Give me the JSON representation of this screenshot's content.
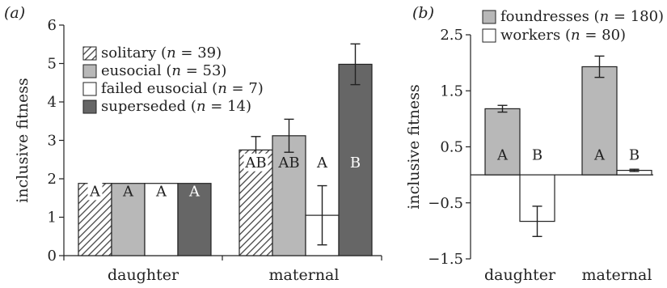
{
  "chart_data": [
    {
      "panel_label": "(a)",
      "type": "bar",
      "ylabel": "inclusive fitness",
      "xlabel": "",
      "ylim": [
        0,
        6
      ],
      "yticks": [
        0,
        1,
        2,
        3,
        4,
        5,
        6
      ],
      "categories": [
        "daughter",
        "maternal"
      ],
      "series": [
        {
          "name": "solitary",
          "n": "39",
          "fill": "hatch",
          "values": [
            1.88,
            2.75
          ],
          "errors": [
            0,
            0.35
          ],
          "letters": [
            "A",
            "AB"
          ]
        },
        {
          "name": "eusocial",
          "n": "53",
          "fill": "#b8b8b8",
          "values": [
            1.88,
            3.12
          ],
          "errors": [
            0,
            0.43
          ],
          "letters": [
            "A",
            "AB"
          ]
        },
        {
          "name": "failed eusocial",
          "n": "7",
          "fill": "#ffffff",
          "values": [
            1.88,
            1.05
          ],
          "errors": [
            0,
            0.77
          ],
          "letters": [
            "A",
            "A"
          ]
        },
        {
          "name": "superseded",
          "n": "14",
          "fill": "#666666",
          "values": [
            1.88,
            4.98
          ],
          "errors": [
            0,
            0.53
          ],
          "letters": [
            "A",
            "B"
          ]
        }
      ],
      "legend_position": "top-left"
    },
    {
      "panel_label": "(b)",
      "type": "bar",
      "ylabel": "inclusive fitness",
      "xlabel": "",
      "ylim": [
        -1.5,
        2.5
      ],
      "yticks": [
        -1.5,
        -0.5,
        0.5,
        1.5,
        2.5
      ],
      "ytick_labels": [
        "−1.5",
        "−0.5",
        "0.5",
        "1.5",
        "2.5"
      ],
      "categories": [
        "daughter",
        "maternal"
      ],
      "series": [
        {
          "name": "foundresses",
          "n": "180",
          "fill": "#b8b8b8",
          "values": [
            1.18,
            1.93
          ],
          "errors": [
            0.06,
            0.19
          ],
          "letters": [
            "A",
            "A"
          ]
        },
        {
          "name": "workers",
          "n": "80",
          "fill": "#ffffff",
          "values": [
            -0.83,
            0.08
          ],
          "errors": [
            0.27,
            0.02
          ],
          "letters": [
            "B",
            "B"
          ]
        }
      ],
      "legend_position": "top-left"
    }
  ]
}
